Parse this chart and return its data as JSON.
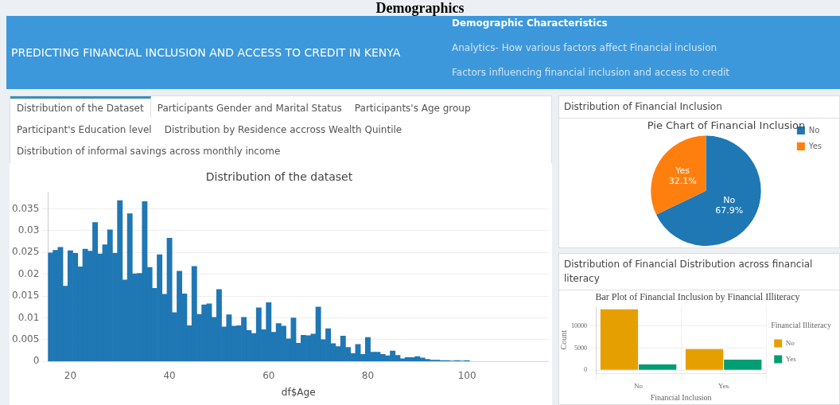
{
  "chart_data": [
    {
      "type": "other",
      "title": "PREDICTING FINANCIAL INCLUSION AND ACCESS TO CREDIT IN KENYA",
      "annotations": [
        "Demographics",
        "Demographic Characteristics",
        "Analytics- How various factors affect Financial inclusion",
        "Factors influencing financial inclusion and access to credit",
        "Distribution of the Dataset",
        "Participants Gender and Marital Status",
        "Participants's Age group",
        "Participant's Education level",
        "Distribution by Residence accross Wealth Quintile",
        "Distribution of informal savings across monthly income"
      ]
    },
    {
      "type": "histogram",
      "title": "Distribution of the dataset",
      "xlabel": "df$Age",
      "color": "#1f77b4",
      "bins": [
        15.5,
        16.5,
        17.5,
        18.5,
        19.5,
        20.5,
        21.5,
        22.5,
        23.5,
        24.5,
        25.5,
        26.5,
        27.5,
        28.5,
        29.5,
        30.5,
        31.5,
        32.5,
        33.5,
        34.5,
        35.5,
        36.5,
        37.5,
        38.5,
        39.5,
        40.5,
        41.5,
        42.5,
        43.5,
        44.5,
        45.5,
        46.5,
        47.5,
        48.5,
        49.5,
        50.5,
        51.5,
        52.5,
        53.5,
        54.5,
        55.5,
        56.5,
        57.5,
        58.5,
        59.5,
        60.5,
        61.5,
        62.5,
        63.5,
        64.5,
        65.5,
        66.5,
        67.5,
        68.5,
        69.5,
        70.5,
        71.5,
        72.5,
        73.5,
        74.5,
        75.5,
        76.5,
        77.5,
        78.5,
        79.5,
        80.5,
        81.5,
        82.5,
        83.5,
        84.5,
        85.5,
        86.5,
        87.5,
        88.5,
        89.5,
        90.5,
        91.5,
        92.5,
        93.5,
        94.5,
        95.5,
        96.5,
        97.5,
        98.5,
        99.5,
        100.5
      ],
      "values": [
        0.0249,
        0.0255,
        0.0262,
        0.0173,
        0.0254,
        0.0248,
        0.0217,
        0.0258,
        0.0253,
        0.0319,
        0.0247,
        0.0268,
        0.0302,
        0.0248,
        0.0369,
        0.0187,
        0.0339,
        0.0201,
        0.0202,
        0.0367,
        0.0216,
        0.0168,
        0.0245,
        0.0154,
        0.0283,
        0.0112,
        0.0207,
        0.0155,
        0.0082,
        0.0218,
        0.0108,
        0.013,
        0.0132,
        0.0101,
        0.0165,
        0.0079,
        0.0107,
        0.0081,
        0.0082,
        0.0101,
        0.0071,
        0.0064,
        0.0123,
        0.0073,
        0.0135,
        0.0067,
        0.0087,
        0.0081,
        0.0052,
        0.01,
        0.0042,
        0.006,
        0.0059,
        0.0063,
        0.0125,
        0.005,
        0.0075,
        0.0041,
        0.0034,
        0.0058,
        0.0032,
        0.0018,
        0.0039,
        0.0016,
        0.0055,
        0.0021,
        0.0021,
        0.0016,
        0.0013,
        0.0024,
        0.0014,
        0.0006,
        0.0009,
        0.0009,
        0.0011,
        0.0008,
        0.0005,
        0.0003,
        0.0003,
        0.0002,
        0.0002,
        0.0001,
        0.0002,
        0.0001,
        0.0002
      ],
      "xlim": [
        15.5,
        116.5
      ],
      "xticks": [
        20,
        40,
        60,
        80,
        100
      ],
      "ylim": [
        0,
        0.0388
      ],
      "yticks": [
        0,
        0.005,
        0.01,
        0.015,
        0.02,
        0.025,
        0.03,
        0.035
      ],
      "grid": "y"
    },
    {
      "type": "pie",
      "title": "Pie Chart of Financial Inclusion",
      "annotations": [
        "Distribution of Financial Inclusion"
      ],
      "categories": [
        "No",
        "Yes"
      ],
      "values": [
        67.9,
        32.1
      ],
      "colors": [
        "#1f77b4",
        "#ff7f0e"
      ],
      "value_labels": [
        "67.9%",
        "32.1%"
      ],
      "data_labels": true,
      "legend": "top right"
    },
    {
      "type": "bar",
      "title": "Bar Plot of Financial Inclusion by Financial Illiteracy",
      "annotations": [
        "Distribution of Financial Distribution across financial literacy"
      ],
      "xlabel": "Financial Inclusion",
      "ylabel": "Count",
      "legend_title": "Financial Illiteracy",
      "categories": [
        "No",
        "Yes"
      ],
      "series": [
        {
          "name": "No",
          "color": "#e69f00",
          "values": [
            13800,
            4800
          ]
        },
        {
          "name": "Yes",
          "color": "#009e73",
          "values": [
            1300,
            2400
          ]
        }
      ],
      "ylim": [
        -700,
        14400
      ],
      "yticks": [
        0,
        5000,
        10000
      ],
      "grid": true,
      "legend": "right"
    }
  ]
}
